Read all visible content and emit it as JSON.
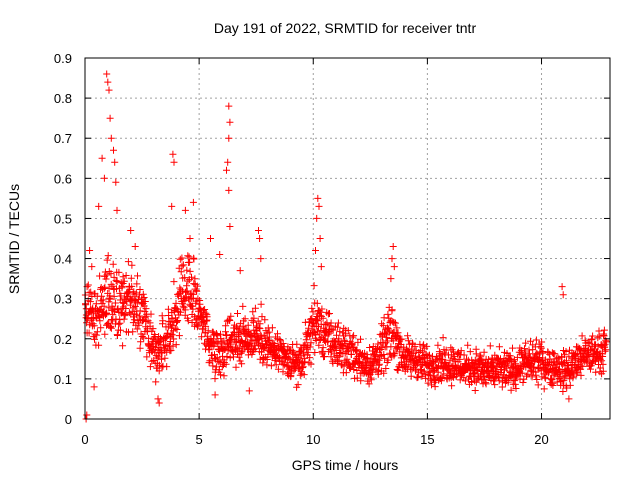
{
  "chart_data": {
    "type": "scatter",
    "title": "Day 191 of 2022, SRMTID for receiver tntr",
    "xlabel": "GPS time / hours",
    "ylabel": "SRMTID / TECUs",
    "xlim": [
      0,
      23.0
    ],
    "ylim": [
      0,
      0.9
    ],
    "xticks": [
      0,
      5,
      10,
      15,
      20
    ],
    "yticks": [
      0,
      0.1,
      0.2,
      0.3,
      0.4,
      0.5,
      0.6,
      0.7,
      0.8,
      0.9
    ],
    "grid": true,
    "marker": "plus",
    "color": "#ff0000",
    "profile": [
      {
        "x": 0.0,
        "y": 0.28,
        "spread": 0.06
      },
      {
        "x": 0.5,
        "y": 0.24,
        "spread": 0.08
      },
      {
        "x": 1.0,
        "y": 0.34,
        "spread": 0.12
      },
      {
        "x": 1.5,
        "y": 0.28,
        "spread": 0.09
      },
      {
        "x": 2.0,
        "y": 0.3,
        "spread": 0.08
      },
      {
        "x": 2.5,
        "y": 0.26,
        "spread": 0.07
      },
      {
        "x": 3.0,
        "y": 0.18,
        "spread": 0.07
      },
      {
        "x": 3.5,
        "y": 0.19,
        "spread": 0.07
      },
      {
        "x": 4.0,
        "y": 0.27,
        "spread": 0.09
      },
      {
        "x": 4.5,
        "y": 0.33,
        "spread": 0.09
      },
      {
        "x": 5.0,
        "y": 0.28,
        "spread": 0.08
      },
      {
        "x": 5.5,
        "y": 0.18,
        "spread": 0.06
      },
      {
        "x": 6.0,
        "y": 0.17,
        "spread": 0.06
      },
      {
        "x": 6.5,
        "y": 0.21,
        "spread": 0.07
      },
      {
        "x": 7.0,
        "y": 0.2,
        "spread": 0.07
      },
      {
        "x": 7.5,
        "y": 0.22,
        "spread": 0.07
      },
      {
        "x": 8.0,
        "y": 0.18,
        "spread": 0.06
      },
      {
        "x": 8.5,
        "y": 0.16,
        "spread": 0.05
      },
      {
        "x": 9.0,
        "y": 0.14,
        "spread": 0.05
      },
      {
        "x": 9.5,
        "y": 0.14,
        "spread": 0.05
      },
      {
        "x": 10.0,
        "y": 0.24,
        "spread": 0.08
      },
      {
        "x": 10.5,
        "y": 0.21,
        "spread": 0.07
      },
      {
        "x": 11.0,
        "y": 0.18,
        "spread": 0.06
      },
      {
        "x": 11.5,
        "y": 0.17,
        "spread": 0.06
      },
      {
        "x": 12.0,
        "y": 0.15,
        "spread": 0.05
      },
      {
        "x": 12.5,
        "y": 0.13,
        "spread": 0.05
      },
      {
        "x": 13.0,
        "y": 0.17,
        "spread": 0.06
      },
      {
        "x": 13.5,
        "y": 0.22,
        "spread": 0.08
      },
      {
        "x": 14.0,
        "y": 0.15,
        "spread": 0.05
      },
      {
        "x": 14.5,
        "y": 0.15,
        "spread": 0.05
      },
      {
        "x": 15.0,
        "y": 0.13,
        "spread": 0.05
      },
      {
        "x": 15.5,
        "y": 0.14,
        "spread": 0.05
      },
      {
        "x": 16.0,
        "y": 0.14,
        "spread": 0.05
      },
      {
        "x": 16.5,
        "y": 0.13,
        "spread": 0.05
      },
      {
        "x": 17.0,
        "y": 0.13,
        "spread": 0.05
      },
      {
        "x": 17.5,
        "y": 0.12,
        "spread": 0.05
      },
      {
        "x": 18.0,
        "y": 0.12,
        "spread": 0.05
      },
      {
        "x": 18.5,
        "y": 0.12,
        "spread": 0.05
      },
      {
        "x": 19.0,
        "y": 0.13,
        "spread": 0.05
      },
      {
        "x": 19.5,
        "y": 0.14,
        "spread": 0.05
      },
      {
        "x": 20.0,
        "y": 0.14,
        "spread": 0.05
      },
      {
        "x": 20.5,
        "y": 0.13,
        "spread": 0.05
      },
      {
        "x": 21.0,
        "y": 0.12,
        "spread": 0.05
      },
      {
        "x": 21.5,
        "y": 0.14,
        "spread": 0.05
      },
      {
        "x": 22.0,
        "y": 0.16,
        "spread": 0.05
      },
      {
        "x": 22.8,
        "y": 0.17,
        "spread": 0.05
      }
    ],
    "points_per_hour": 90,
    "x_end": 22.85,
    "peaks": [
      {
        "x": 0.05,
        "y": 0.0
      },
      {
        "x": 0.08,
        "y": 0.01
      },
      {
        "x": 0.2,
        "y": 0.42
      },
      {
        "x": 0.3,
        "y": 0.38
      },
      {
        "x": 0.6,
        "y": 0.53
      },
      {
        "x": 0.75,
        "y": 0.65
      },
      {
        "x": 0.85,
        "y": 0.6
      },
      {
        "x": 0.95,
        "y": 0.86
      },
      {
        "x": 1.0,
        "y": 0.84
      },
      {
        "x": 1.05,
        "y": 0.82
      },
      {
        "x": 1.1,
        "y": 0.75
      },
      {
        "x": 1.15,
        "y": 0.7
      },
      {
        "x": 1.25,
        "y": 0.67
      },
      {
        "x": 1.3,
        "y": 0.64
      },
      {
        "x": 1.35,
        "y": 0.59
      },
      {
        "x": 1.4,
        "y": 0.52
      },
      {
        "x": 2.0,
        "y": 0.47
      },
      {
        "x": 2.2,
        "y": 0.43
      },
      {
        "x": 3.85,
        "y": 0.66
      },
      {
        "x": 3.9,
        "y": 0.64
      },
      {
        "x": 3.8,
        "y": 0.53
      },
      {
        "x": 4.4,
        "y": 0.52
      },
      {
        "x": 4.6,
        "y": 0.45
      },
      {
        "x": 4.75,
        "y": 0.54
      },
      {
        "x": 5.5,
        "y": 0.45
      },
      {
        "x": 5.9,
        "y": 0.41
      },
      {
        "x": 6.3,
        "y": 0.78
      },
      {
        "x": 6.35,
        "y": 0.74
      },
      {
        "x": 6.3,
        "y": 0.7
      },
      {
        "x": 6.25,
        "y": 0.64
      },
      {
        "x": 6.2,
        "y": 0.62
      },
      {
        "x": 6.3,
        "y": 0.57
      },
      {
        "x": 6.35,
        "y": 0.48
      },
      {
        "x": 6.8,
        "y": 0.37
      },
      {
        "x": 7.6,
        "y": 0.47
      },
      {
        "x": 7.65,
        "y": 0.45
      },
      {
        "x": 7.7,
        "y": 0.4
      },
      {
        "x": 10.2,
        "y": 0.55
      },
      {
        "x": 10.25,
        "y": 0.53
      },
      {
        "x": 10.15,
        "y": 0.5
      },
      {
        "x": 10.3,
        "y": 0.45
      },
      {
        "x": 10.1,
        "y": 0.42
      },
      {
        "x": 10.35,
        "y": 0.38
      },
      {
        "x": 13.5,
        "y": 0.43
      },
      {
        "x": 13.45,
        "y": 0.4
      },
      {
        "x": 13.55,
        "y": 0.38
      },
      {
        "x": 13.4,
        "y": 0.35
      },
      {
        "x": 20.9,
        "y": 0.33
      },
      {
        "x": 20.95,
        "y": 0.31
      },
      {
        "x": 0.4,
        "y": 0.08
      },
      {
        "x": 3.2,
        "y": 0.05
      },
      {
        "x": 3.25,
        "y": 0.04
      },
      {
        "x": 5.7,
        "y": 0.06
      },
      {
        "x": 7.2,
        "y": 0.07
      },
      {
        "x": 21.2,
        "y": 0.05
      }
    ]
  }
}
